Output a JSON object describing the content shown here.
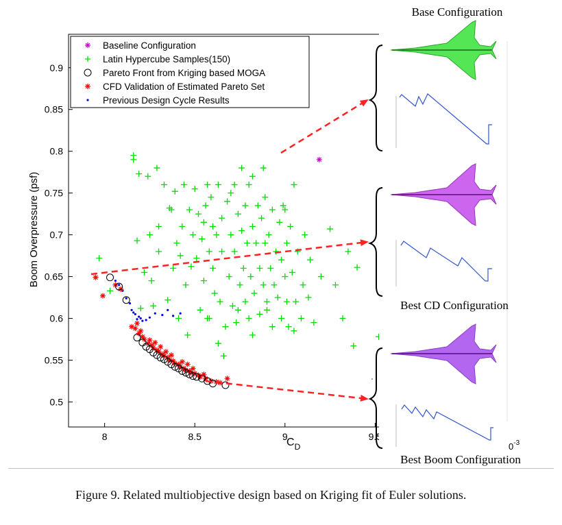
{
  "chart_data": {
    "type": "scatter",
    "xlabel_main": "C",
    "xlabel_sub": "D",
    "ylabel": "Boom Overpressure (psf)",
    "xlim": [
      7.8,
      9.7
    ],
    "ylim": [
      0.47,
      0.94
    ],
    "xticks": [
      "8",
      "8.5",
      "9",
      "9.5"
    ],
    "yticks": [
      "0.5",
      "0.55",
      "0.6",
      "0.65",
      "0.7",
      "0.75",
      "0.8",
      "0.85",
      "0.9"
    ],
    "xtick_values": [
      8,
      8.5,
      9,
      9.5
    ],
    "ytick_values": [
      0.5,
      0.55,
      0.6,
      0.65,
      0.7,
      0.75,
      0.8,
      0.85,
      0.9
    ],
    "exponent_label": "0",
    "exponent_sup": "-3",
    "legend_position": "top-left",
    "legend": [
      {
        "label": "Baseline Configuration",
        "marker": "star",
        "color": "#cc00cc"
      },
      {
        "label": "Latin Hypercube Samples(150)",
        "marker": "plus",
        "color": "#00dd00"
      },
      {
        "label": "Pareto Front from Kriging based MOGA",
        "marker": "circle",
        "color": "#000000"
      },
      {
        "label": "CFD Validation of Estimated Pareto Set",
        "marker": "star",
        "color": "#ff0000"
      },
      {
        "label": "Previous Design Cycle Results",
        "marker": "dot",
        "color": "#0000ee"
      }
    ],
    "series": [
      {
        "key": "baseline",
        "marker": "star",
        "color": "#cc00cc",
        "points": [
          [
            9.19,
            0.79
          ]
        ]
      },
      {
        "key": "lhs",
        "marker": "plus",
        "color": "#00dd00",
        "points": [
          [
            7.97,
            0.672
          ],
          [
            8.03,
            0.633
          ],
          [
            8.16,
            0.795
          ],
          [
            8.16,
            0.79
          ],
          [
            8.18,
            0.693
          ],
          [
            8.19,
            0.773
          ],
          [
            8.24,
            0.77
          ],
          [
            8.25,
            0.7
          ],
          [
            8.26,
            0.645
          ],
          [
            8.27,
            0.615
          ],
          [
            8.29,
            0.78
          ],
          [
            8.3,
            0.71
          ],
          [
            8.33,
            0.76
          ],
          [
            8.35,
            0.622
          ],
          [
            8.36,
            0.732
          ],
          [
            8.38,
            0.66
          ],
          [
            8.39,
            0.752
          ],
          [
            8.4,
            0.69
          ],
          [
            8.41,
            0.6
          ],
          [
            8.42,
            0.675
          ],
          [
            8.43,
            0.71
          ],
          [
            8.44,
            0.76
          ],
          [
            8.45,
            0.64
          ],
          [
            8.47,
            0.73
          ],
          [
            8.48,
            0.662
          ],
          [
            8.49,
            0.7
          ],
          [
            8.5,
            0.755
          ],
          [
            8.51,
            0.672
          ],
          [
            8.52,
            0.725
          ],
          [
            8.53,
            0.61
          ],
          [
            8.54,
            0.695
          ],
          [
            8.55,
            0.645
          ],
          [
            8.55,
            0.715
          ],
          [
            8.56,
            0.735
          ],
          [
            8.57,
            0.6
          ],
          [
            8.58,
            0.68
          ],
          [
            8.59,
            0.745
          ],
          [
            8.6,
            0.66
          ],
          [
            8.6,
            0.71
          ],
          [
            8.61,
            0.63
          ],
          [
            8.62,
            0.7
          ],
          [
            8.63,
            0.76
          ],
          [
            8.64,
            0.62
          ],
          [
            8.65,
            0.68
          ],
          [
            8.65,
            0.72
          ],
          [
            8.66,
            0.555
          ],
          [
            8.67,
            0.59
          ],
          [
            8.68,
            0.74
          ],
          [
            8.69,
            0.65
          ],
          [
            8.7,
            0.7
          ],
          [
            8.71,
            0.615
          ],
          [
            8.72,
            0.76
          ],
          [
            8.72,
            0.68
          ],
          [
            8.73,
            0.595
          ],
          [
            8.74,
            0.725
          ],
          [
            8.75,
            0.64
          ],
          [
            8.76,
            0.705
          ],
          [
            8.76,
            0.78
          ],
          [
            8.77,
            0.66
          ],
          [
            8.78,
            0.735
          ],
          [
            8.78,
            0.62
          ],
          [
            8.79,
            0.69
          ],
          [
            8.8,
            0.76
          ],
          [
            8.8,
            0.6
          ],
          [
            8.81,
            0.65
          ],
          [
            8.82,
            0.71
          ],
          [
            8.82,
            0.77
          ],
          [
            8.83,
            0.63
          ],
          [
            8.84,
            0.69
          ],
          [
            8.85,
            0.735
          ],
          [
            8.86,
            0.605
          ],
          [
            8.86,
            0.66
          ],
          [
            8.87,
            0.72
          ],
          [
            8.88,
            0.64
          ],
          [
            8.89,
            0.745
          ],
          [
            8.89,
            0.69
          ],
          [
            8.9,
            0.62
          ],
          [
            8.91,
            0.7
          ],
          [
            8.92,
            0.66
          ],
          [
            8.93,
            0.59
          ],
          [
            8.93,
            0.73
          ],
          [
            8.94,
            0.64
          ],
          [
            8.95,
            0.68
          ],
          [
            8.96,
            0.625
          ],
          [
            8.97,
            0.715
          ],
          [
            8.98,
            0.6
          ],
          [
            8.98,
            0.67
          ],
          [
            8.99,
            0.735
          ],
          [
            9.0,
            0.65
          ],
          [
            9.01,
            0.69
          ],
          [
            9.01,
            0.62
          ],
          [
            9.02,
            0.59
          ],
          [
            9.03,
            0.71
          ],
          [
            9.04,
            0.655
          ],
          [
            9.05,
            0.76
          ],
          [
            9.06,
            0.62
          ],
          [
            9.07,
            0.68
          ],
          [
            9.09,
            0.6
          ],
          [
            9.1,
            0.64
          ],
          [
            9.11,
            0.7
          ],
          [
            9.13,
            0.625
          ],
          [
            9.14,
            0.67
          ],
          [
            9.16,
            0.595
          ],
          [
            9.2,
            0.65
          ],
          [
            9.25,
            0.707
          ],
          [
            9.28,
            0.64
          ],
          [
            9.32,
            0.6
          ],
          [
            9.35,
            0.68
          ],
          [
            9.38,
            0.567
          ],
          [
            9.4,
            0.661
          ],
          [
            9.52,
            0.578
          ],
          [
            8.2,
            0.612
          ],
          [
            8.22,
            0.655
          ],
          [
            8.3,
            0.68
          ],
          [
            8.37,
            0.73
          ],
          [
            8.46,
            0.58
          ],
          [
            8.58,
            0.6
          ],
          [
            8.63,
            0.57
          ],
          [
            8.7,
            0.75
          ],
          [
            8.74,
            0.61
          ],
          [
            8.82,
            0.58
          ],
          [
            8.88,
            0.78
          ],
          [
            9.0,
            0.73
          ],
          [
            9.05,
            0.585
          ],
          [
            8.9,
            0.61
          ],
          [
            8.57,
            0.76
          ]
        ]
      },
      {
        "key": "pareto",
        "marker": "circle",
        "color": "#000000",
        "points": [
          [
            8.03,
            0.649
          ],
          [
            8.08,
            0.638
          ],
          [
            8.12,
            0.622
          ],
          [
            8.18,
            0.577
          ],
          [
            8.21,
            0.571
          ],
          [
            8.23,
            0.566
          ],
          [
            8.25,
            0.563
          ],
          [
            8.27,
            0.559
          ],
          [
            8.29,
            0.556
          ],
          [
            8.31,
            0.553
          ],
          [
            8.33,
            0.551
          ],
          [
            8.35,
            0.548
          ],
          [
            8.37,
            0.545
          ],
          [
            8.39,
            0.542
          ],
          [
            8.41,
            0.54
          ],
          [
            8.43,
            0.537
          ],
          [
            8.45,
            0.535
          ],
          [
            8.47,
            0.533
          ],
          [
            8.49,
            0.531
          ],
          [
            8.51,
            0.53
          ],
          [
            8.54,
            0.528
          ],
          [
            8.57,
            0.525
          ],
          [
            8.6,
            0.522
          ],
          [
            8.67,
            0.52
          ]
        ]
      },
      {
        "key": "cfd",
        "marker": "star",
        "color": "#ff0000",
        "points": [
          [
            7.95,
            0.649
          ],
          [
            7.99,
            0.627
          ],
          [
            8.06,
            0.64
          ],
          [
            8.09,
            0.635
          ],
          [
            8.15,
            0.59
          ],
          [
            8.17,
            0.588
          ],
          [
            8.19,
            0.582
          ],
          [
            8.21,
            0.578
          ],
          [
            8.22,
            0.575
          ],
          [
            8.24,
            0.57
          ],
          [
            8.26,
            0.568
          ],
          [
            8.27,
            0.565
          ],
          [
            8.29,
            0.562
          ],
          [
            8.3,
            0.56
          ],
          [
            8.32,
            0.557
          ],
          [
            8.33,
            0.555
          ],
          [
            8.35,
            0.553
          ],
          [
            8.36,
            0.55
          ],
          [
            8.38,
            0.549
          ],
          [
            8.39,
            0.546
          ],
          [
            8.41,
            0.545
          ],
          [
            8.42,
            0.542
          ],
          [
            8.44,
            0.54
          ],
          [
            8.45,
            0.538
          ],
          [
            8.47,
            0.537
          ],
          [
            8.48,
            0.535
          ],
          [
            8.5,
            0.534
          ],
          [
            8.52,
            0.532
          ],
          [
            8.53,
            0.53
          ],
          [
            8.56,
            0.528
          ],
          [
            8.59,
            0.525
          ],
          [
            8.62,
            0.524
          ],
          [
            8.64,
            0.523
          ],
          [
            8.68,
            0.528
          ],
          [
            8.2,
            0.585
          ],
          [
            8.25,
            0.574
          ],
          [
            8.31,
            0.566
          ],
          [
            8.37,
            0.556
          ],
          [
            8.43,
            0.548
          ],
          [
            8.49,
            0.54
          ],
          [
            8.55,
            0.533
          ],
          [
            8.46,
            0.545
          ],
          [
            8.34,
            0.56
          ],
          [
            8.28,
            0.571
          ],
          [
            8.18,
            0.594
          ]
        ]
      },
      {
        "key": "previous",
        "marker": "dot",
        "color": "#0000ee",
        "points": [
          [
            8.06,
            0.645
          ],
          [
            8.08,
            0.64
          ],
          [
            8.1,
            0.633
          ],
          [
            8.12,
            0.624
          ],
          [
            8.14,
            0.618
          ],
          [
            8.16,
            0.607
          ],
          [
            8.17,
            0.605
          ],
          [
            8.19,
            0.602
          ],
          [
            8.2,
            0.6
          ],
          [
            8.21,
            0.597
          ],
          [
            8.23,
            0.598
          ],
          [
            8.25,
            0.601
          ],
          [
            8.28,
            0.606
          ],
          [
            8.32,
            0.604
          ],
          [
            8.35,
            0.61
          ],
          [
            8.38,
            0.603
          ],
          [
            8.42,
            0.606
          ],
          [
            8.15,
            0.61
          ],
          [
            8.18,
            0.599
          ]
        ]
      }
    ]
  },
  "right_panel": {
    "base_title": "Base Configuration",
    "cd_title": "Best CD Configuration",
    "boom_title": "Best Boom Configuration",
    "aircraft_colors": {
      "base": "#55e655",
      "cd": "#cc66ee",
      "boom": "#b366f0"
    },
    "arrow_color": "#ff2222",
    "signature_color": "#3355cc"
  },
  "caption": "Figure 9.  Related multiobjective design based on Kriging fit of Euler solutions."
}
